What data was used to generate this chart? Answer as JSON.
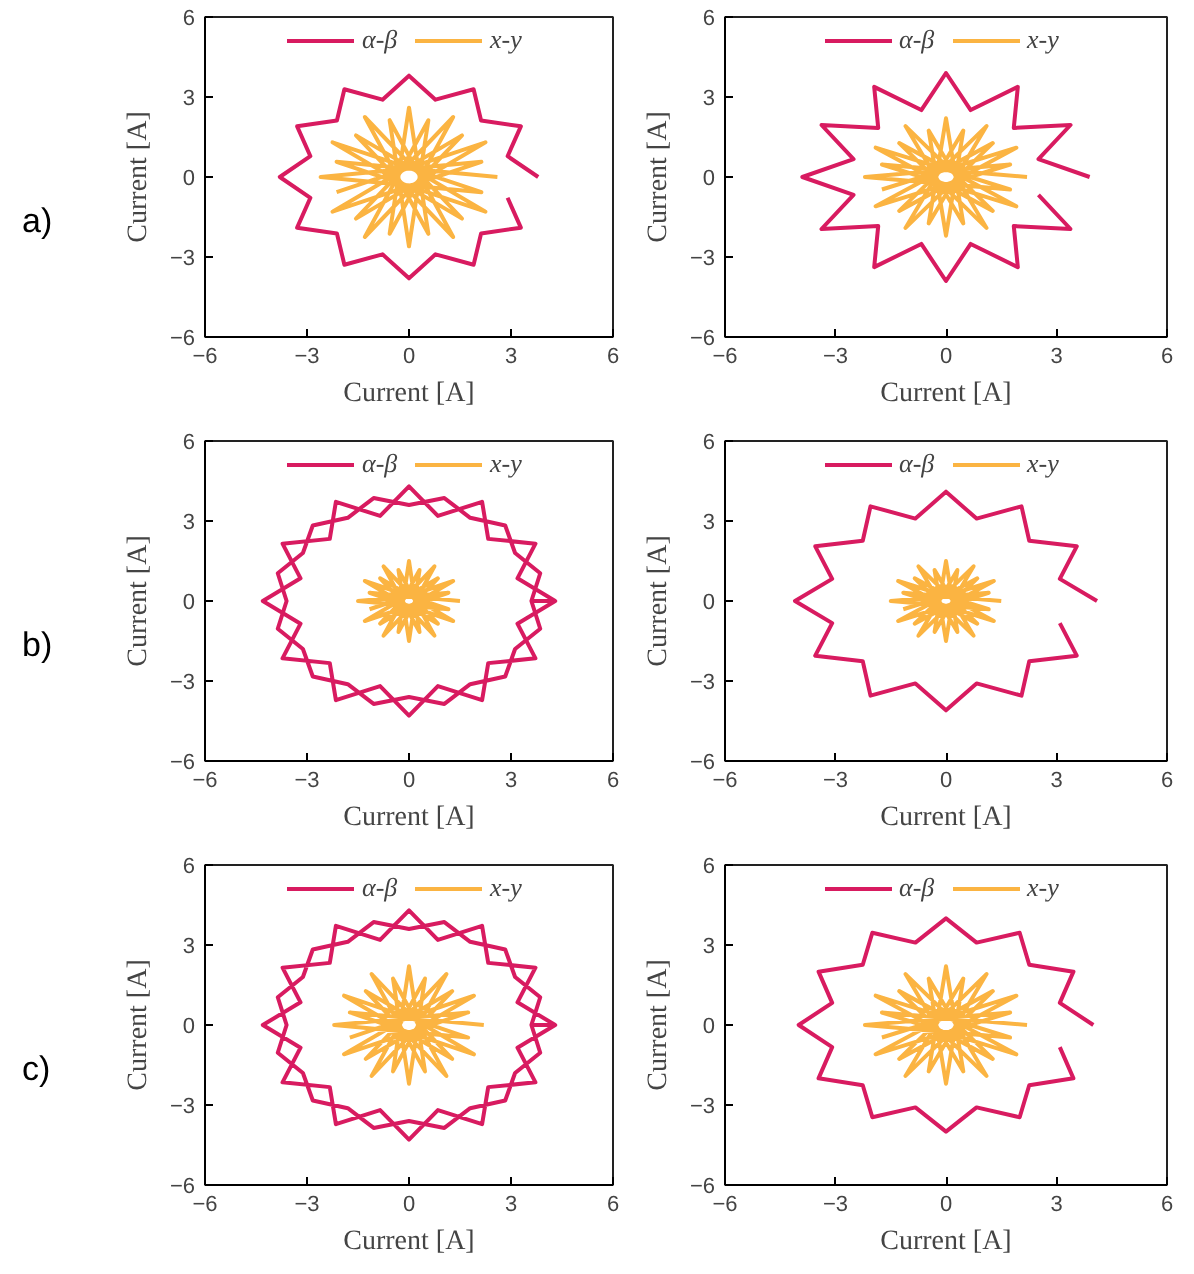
{
  "chart_data": [
    {
      "type": "line",
      "xlabel": "Current [A]",
      "ylabel": "Current [A]",
      "xlim": [
        -6,
        6
      ],
      "ylim": [
        -6,
        6
      ],
      "xticks": [
        -6,
        -3,
        0,
        3,
        6
      ],
      "yticks": [
        -6,
        -3,
        0,
        3,
        6
      ],
      "legend": "top",
      "annotations": [
        "a)"
      ],
      "series": [
        {
          "name": "α-β",
          "color": "#d81b60",
          "x": [
            3.8,
            2.9,
            3.29,
            2.12,
            1.9,
            0.78,
            0,
            -0.78,
            -1.9,
            -2.12,
            -3.29,
            -2.9,
            -3.8,
            -2.9,
            -3.29,
            -2.12,
            -1.9,
            -0.78,
            0,
            0.78,
            1.9,
            2.12,
            3.29,
            2.9
          ],
          "values": [
            0,
            0.78,
            1.9,
            2.12,
            3.29,
            2.9,
            3.8,
            2.9,
            3.29,
            2.12,
            1.9,
            0.78,
            0,
            -0.78,
            -1.9,
            -2.12,
            -3.29,
            -2.9,
            -3.8,
            -2.9,
            -3.29,
            -2.12,
            -1.9,
            -0.78
          ]
        },
        {
          "name": "x-y",
          "color": "#fbb442",
          "x": [
            2.6,
            -2.13,
            2.25,
            -1.56,
            1.3,
            -0.57,
            0,
            0.57,
            -1.3,
            1.56,
            -2.25,
            2.13,
            -2.6,
            2.13,
            -2.25,
            1.56,
            -1.3,
            0.57,
            0,
            -0.57,
            1.3,
            -1.56,
            2.25,
            -2.13
          ],
          "values": [
            0,
            0.57,
            -1.3,
            1.56,
            -2.25,
            2.13,
            -2.6,
            2.13,
            -2.25,
            1.56,
            -1.3,
            0.57,
            0,
            -0.57,
            1.3,
            -1.56,
            2.25,
            -2.13,
            2.6,
            -2.13,
            2.25,
            -1.56,
            1.3,
            -0.57
          ]
        }
      ]
    },
    {
      "type": "line",
      "xlabel": "Current [A]",
      "ylabel": "Current [A]",
      "xlim": [
        -6,
        6
      ],
      "ylim": [
        -6,
        6
      ],
      "xticks": [
        -6,
        -3,
        0,
        3,
        6
      ],
      "yticks": [
        -6,
        -3,
        0,
        3,
        6
      ],
      "legend": "top",
      "series": [
        {
          "name": "α-β",
          "color": "#d81b60",
          "x": [
            3.9,
            2.51,
            3.38,
            1.84,
            1.95,
            0.67,
            0,
            -0.67,
            -1.95,
            -1.84,
            -3.38,
            -2.51,
            -3.9,
            -2.51,
            -3.38,
            -1.84,
            -1.95,
            -0.67,
            0,
            0.67,
            1.95,
            1.84,
            3.38,
            2.51
          ],
          "values": [
            0,
            0.67,
            1.95,
            1.84,
            3.38,
            2.51,
            3.9,
            2.51,
            3.38,
            1.84,
            1.95,
            0.67,
            0,
            -0.67,
            -1.95,
            -1.84,
            -3.38,
            -2.51,
            -3.9,
            -2.51,
            -3.38,
            -1.84,
            -1.95,
            -0.67
          ]
        },
        {
          "name": "x-y",
          "color": "#fbb442",
          "x": [
            2.2,
            -1.74,
            1.91,
            -1.27,
            1.1,
            -0.47,
            0,
            0.47,
            -1.1,
            1.27,
            -1.91,
            1.74,
            -2.2,
            1.74,
            -1.91,
            1.27,
            -1.1,
            0.47,
            0,
            -0.47,
            1.1,
            -1.27,
            1.91,
            -1.74
          ],
          "values": [
            0,
            0.47,
            -1.1,
            1.27,
            -1.91,
            1.74,
            -2.2,
            1.74,
            -1.91,
            1.27,
            -1.1,
            0.47,
            0,
            -0.47,
            1.1,
            -1.27,
            1.91,
            -1.74,
            2.2,
            -1.74,
            1.91,
            -1.27,
            1.1,
            -0.47
          ]
        }
      ]
    },
    {
      "type": "line",
      "xlabel": "Current [A]",
      "ylabel": "Current [A]",
      "xlim": [
        -6,
        6
      ],
      "ylim": [
        -6,
        6
      ],
      "xticks": [
        -6,
        -3,
        0,
        3,
        6
      ],
      "yticks": [
        -6,
        -3,
        0,
        3,
        6
      ],
      "legend": "top",
      "annotations": [
        "b)"
      ],
      "series": [
        {
          "name": "α-β",
          "color": "#d81b60",
          "x": [
            4.3,
            3.19,
            3.72,
            2.33,
            2.15,
            0.85,
            0,
            -0.85,
            -2.15,
            -2.33,
            -3.72,
            -3.19,
            -4.3,
            -3.19,
            -3.72,
            -2.33,
            -2.15,
            -0.85,
            0,
            0.85,
            2.15,
            2.33,
            3.72,
            3.19,
            4.3,
            3.6,
            3.86,
            3.12,
            2.83,
            1.8,
            1.04,
            0,
            -1.04,
            -1.8,
            -2.83,
            -3.12,
            -3.86,
            -3.6,
            -3.86,
            -3.12,
            -2.83,
            -1.8,
            -1.04,
            0,
            1.04,
            1.8,
            2.83,
            3.12,
            3.86,
            3.6
          ],
          "values": [
            0,
            0.85,
            2.15,
            2.33,
            3.72,
            3.19,
            4.3,
            3.19,
            3.72,
            2.33,
            2.15,
            0.85,
            0,
            -0.85,
            -2.15,
            -2.33,
            -3.72,
            -3.19,
            -4.3,
            -3.19,
            -3.72,
            -2.33,
            -2.15,
            -0.85,
            0,
            0,
            1.04,
            1.8,
            2.83,
            3.12,
            3.86,
            3.6,
            3.86,
            3.12,
            2.83,
            1.8,
            1.04,
            0,
            -1.04,
            -1.8,
            -2.83,
            -3.12,
            -3.86,
            -3.6,
            -3.86,
            -3.12,
            -2.83,
            -1.8,
            -1.04,
            0
          ]
        },
        {
          "name": "x-y",
          "color": "#fbb442",
          "x": [
            1.5,
            -1.16,
            1.3,
            -0.85,
            0.75,
            -0.31,
            0,
            0.31,
            -0.75,
            0.85,
            -1.3,
            1.16,
            -1.5,
            1.16,
            -1.3,
            0.85,
            -0.75,
            0.31,
            0,
            -0.31,
            0.75,
            -0.85,
            1.3,
            -1.16
          ],
          "values": [
            0,
            0.31,
            -0.75,
            0.85,
            -1.3,
            1.16,
            -1.5,
            1.16,
            -1.3,
            0.85,
            -0.75,
            0.31,
            0,
            -0.31,
            0.75,
            -0.85,
            1.3,
            -1.16,
            1.5,
            -1.16,
            1.3,
            -0.85,
            0.75,
            -0.31
          ]
        }
      ]
    },
    {
      "type": "line",
      "xlabel": "Current [A]",
      "ylabel": "Current [A]",
      "xlim": [
        -6,
        6
      ],
      "ylim": [
        -6,
        6
      ],
      "xticks": [
        -6,
        -3,
        0,
        3,
        6
      ],
      "yticks": [
        -6,
        -3,
        0,
        3,
        6
      ],
      "legend": "top",
      "series": [
        {
          "name": "α-β",
          "color": "#d81b60",
          "x": [
            4.1,
            3.09,
            3.55,
            2.26,
            2.05,
            0.83,
            0,
            -0.83,
            -2.05,
            -2.26,
            -3.55,
            -3.09,
            -4.1,
            -3.09,
            -3.55,
            -2.26,
            -2.05,
            -0.83,
            0,
            0.83,
            2.05,
            2.26,
            3.55,
            3.09
          ],
          "values": [
            0,
            0.83,
            2.05,
            2.26,
            3.55,
            3.09,
            4.1,
            3.09,
            3.55,
            2.26,
            2.05,
            0.83,
            0,
            -0.83,
            -2.05,
            -2.26,
            -3.55,
            -3.09,
            -4.1,
            -3.09,
            -3.55,
            -2.26,
            -2.05,
            -0.83
          ]
        },
        {
          "name": "x-y",
          "color": "#fbb442",
          "x": [
            1.5,
            -1.16,
            1.3,
            -0.85,
            0.75,
            -0.31,
            0,
            0.31,
            -0.75,
            0.85,
            -1.3,
            1.16,
            -1.5,
            1.16,
            -1.3,
            0.85,
            -0.75,
            0.31,
            0,
            -0.31,
            0.75,
            -0.85,
            1.3,
            -1.16
          ],
          "values": [
            0,
            0.31,
            -0.75,
            0.85,
            -1.3,
            1.16,
            -1.5,
            1.16,
            -1.3,
            0.85,
            -0.75,
            0.31,
            0,
            -0.31,
            0.75,
            -0.85,
            1.3,
            -1.16,
            1.5,
            -1.16,
            1.3,
            -0.85,
            0.75,
            -0.31
          ]
        }
      ]
    },
    {
      "type": "line",
      "xlabel": "Current [A]",
      "ylabel": "Current [A]",
      "xlim": [
        -6,
        6
      ],
      "ylim": [
        -6,
        6
      ],
      "xticks": [
        -6,
        -3,
        0,
        3,
        6
      ],
      "yticks": [
        -6,
        -3,
        0,
        3,
        6
      ],
      "legend": "top",
      "annotations": [
        "c)"
      ],
      "series": [
        {
          "name": "α-β",
          "color": "#d81b60",
          "x": [
            4.3,
            3.19,
            3.72,
            2.33,
            2.15,
            0.85,
            0,
            -0.85,
            -2.15,
            -2.33,
            -3.72,
            -3.19,
            -4.3,
            -3.19,
            -3.72,
            -2.33,
            -2.15,
            -0.85,
            0,
            0.85,
            2.15,
            2.33,
            3.72,
            3.19,
            4.3,
            3.6,
            3.86,
            3.12,
            2.83,
            1.8,
            1.04,
            0,
            -1.04,
            -1.8,
            -2.83,
            -3.12,
            -3.86,
            -3.6,
            -3.86,
            -3.12,
            -2.83,
            -1.8,
            -1.04,
            0,
            1.04,
            1.8,
            2.83,
            3.12,
            3.86,
            3.6
          ],
          "values": [
            0,
            0.85,
            2.15,
            2.33,
            3.72,
            3.19,
            4.3,
            3.19,
            3.72,
            2.33,
            2.15,
            0.85,
            0,
            -0.85,
            -2.15,
            -2.33,
            -3.72,
            -3.19,
            -4.3,
            -3.19,
            -3.72,
            -2.33,
            -2.15,
            -0.85,
            0,
            0,
            1.04,
            1.8,
            2.83,
            3.12,
            3.86,
            3.6,
            3.86,
            3.12,
            2.83,
            1.8,
            1.04,
            0,
            -1.04,
            -1.8,
            -2.83,
            -3.12,
            -3.86,
            -3.6,
            -3.86,
            -3.12,
            -2.83,
            -1.8,
            -1.04,
            0
          ]
        },
        {
          "name": "x-y",
          "color": "#fbb442",
          "x": [
            2.2,
            -1.74,
            1.91,
            -1.27,
            1.1,
            -0.47,
            0,
            0.47,
            -1.1,
            1.27,
            -1.91,
            1.74,
            -2.2,
            1.74,
            -1.91,
            1.27,
            -1.1,
            0.47,
            0,
            -0.47,
            1.1,
            -1.27,
            1.91,
            -1.74
          ],
          "values": [
            0,
            0.47,
            -1.1,
            1.27,
            -1.91,
            1.74,
            -2.2,
            1.74,
            -1.91,
            1.27,
            -1.1,
            0.47,
            0,
            -0.47,
            1.1,
            -1.27,
            1.91,
            -1.74,
            2.2,
            -1.74,
            1.91,
            -1.27,
            1.1,
            -0.47
          ]
        }
      ]
    },
    {
      "type": "line",
      "xlabel": "Current [A]",
      "ylabel": "Current [A]",
      "xlim": [
        -6,
        6
      ],
      "ylim": [
        -6,
        6
      ],
      "xticks": [
        -6,
        -3,
        0,
        3,
        6
      ],
      "yticks": [
        -6,
        -3,
        0,
        3,
        6
      ],
      "legend": "top",
      "series": [
        {
          "name": "α-β",
          "color": "#d81b60",
          "x": [
            4.0,
            3.09,
            3.46,
            2.26,
            2.0,
            0.83,
            0,
            -0.83,
            -2.0,
            -2.26,
            -3.46,
            -3.09,
            -4.0,
            -3.09,
            -3.46,
            -2.26,
            -2.0,
            -0.83,
            0,
            0.83,
            2.0,
            2.26,
            3.46,
            3.09
          ],
          "values": [
            0,
            0.83,
            2.0,
            2.26,
            3.46,
            3.09,
            4.0,
            3.09,
            3.46,
            2.26,
            2.0,
            0.83,
            0,
            -0.83,
            -2.0,
            -2.26,
            -3.46,
            -3.09,
            -4.0,
            -3.09,
            -3.46,
            -2.26,
            -2.0,
            -0.83
          ]
        },
        {
          "name": "x-y",
          "color": "#fbb442",
          "x": [
            2.2,
            -1.74,
            1.91,
            -1.27,
            1.1,
            -0.47,
            0,
            0.47,
            -1.1,
            1.27,
            -1.91,
            1.74,
            -2.2,
            1.74,
            -1.91,
            1.27,
            -1.1,
            0.47,
            0,
            -0.47,
            1.1,
            -1.27,
            1.91,
            -1.74
          ],
          "values": [
            0,
            0.47,
            -1.1,
            1.27,
            -1.91,
            1.74,
            -2.2,
            1.74,
            -1.91,
            1.27,
            -1.1,
            0.47,
            0,
            -0.47,
            1.1,
            -1.27,
            1.91,
            -1.74,
            2.2,
            -1.74,
            1.91,
            -1.27,
            1.1,
            -0.47
          ]
        }
      ]
    }
  ]
}
